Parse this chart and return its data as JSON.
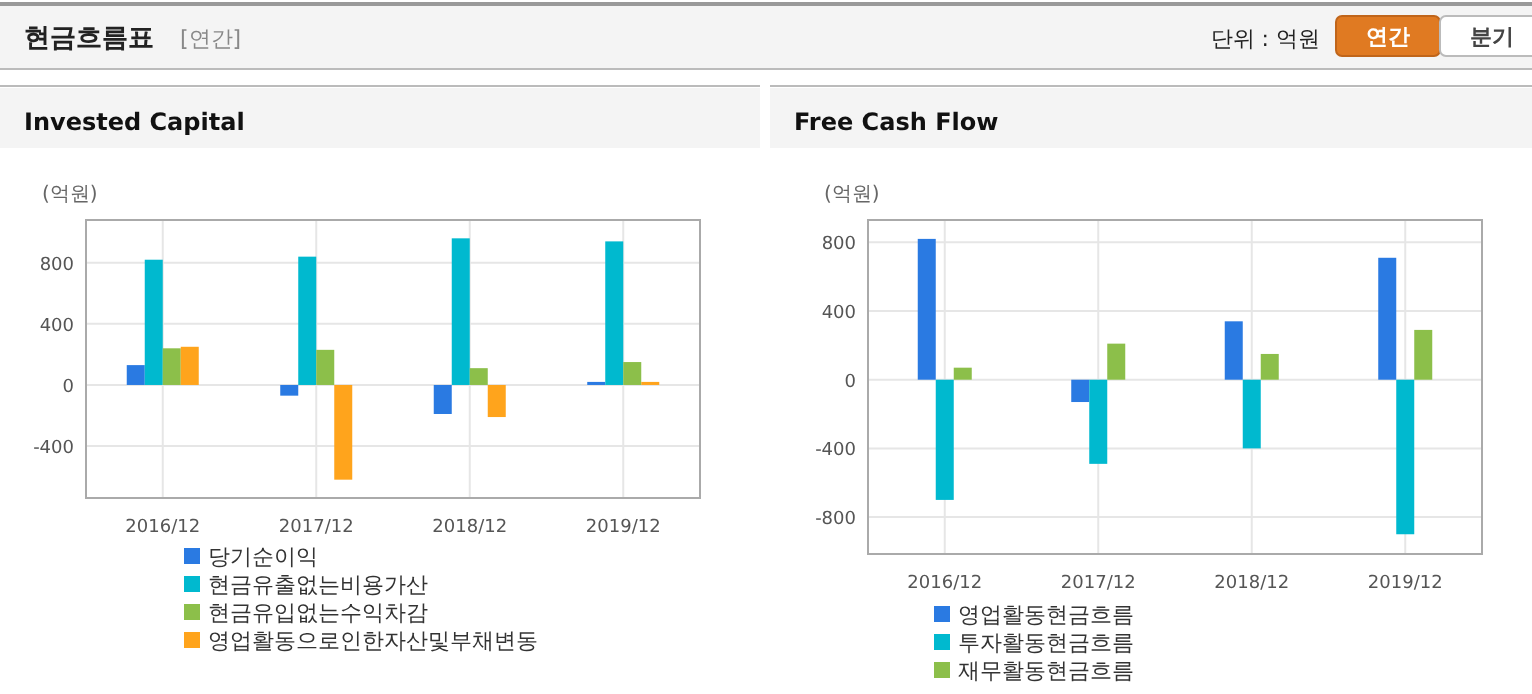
{
  "chart_data": [
    {
      "type": "other",
      "title": "현금흐름표",
      "subtitle": "[연간]",
      "annotations": [
        "단위 : 억원",
        "연간",
        "분기"
      ]
    },
    {
      "type": "bar",
      "title": "Invested Capital",
      "ylabel": "(억원)",
      "categories": [
        "2016/12",
        "2017/12",
        "2018/12",
        "2019/12"
      ],
      "series": [
        {
          "name": "당기순이익",
          "color": "#2a7ae2",
          "values": [
            130,
            -70,
            -190,
            20
          ]
        },
        {
          "name": "현금유출없는비용가산",
          "color": "#00b9cf",
          "values": [
            820,
            840,
            960,
            940
          ]
        },
        {
          "name": "현금유입없는수익차감",
          "color": "#8cbf4a",
          "values": [
            240,
            230,
            110,
            150
          ]
        },
        {
          "name": "영업활동으로인한자산및부채변동",
          "color": "#ffa41c",
          "values": [
            250,
            -620,
            -210,
            20
          ]
        }
      ],
      "ylim": [
        -740,
        1080
      ],
      "yticks": [
        -400,
        0,
        400,
        800
      ],
      "grid": true,
      "legend": "bottom"
    },
    {
      "type": "bar",
      "title": "Free Cash Flow",
      "ylabel": "(억원)",
      "categories": [
        "2016/12",
        "2017/12",
        "2018/12",
        "2019/12"
      ],
      "series": [
        {
          "name": "영업활동현금흐름",
          "color": "#2a7ae2",
          "values": [
            820,
            -130,
            340,
            710
          ]
        },
        {
          "name": "투자활동현금흐름",
          "color": "#00b9cf",
          "values": [
            -700,
            -490,
            -400,
            -900
          ]
        },
        {
          "name": "재무활동현금흐름",
          "color": "#8cbf4a",
          "values": [
            70,
            210,
            150,
            290
          ]
        }
      ],
      "ylim": [
        -1015,
        930
      ],
      "yticks": [
        -800,
        -400,
        0,
        400,
        800
      ],
      "grid": true,
      "legend": "bottom"
    }
  ]
}
